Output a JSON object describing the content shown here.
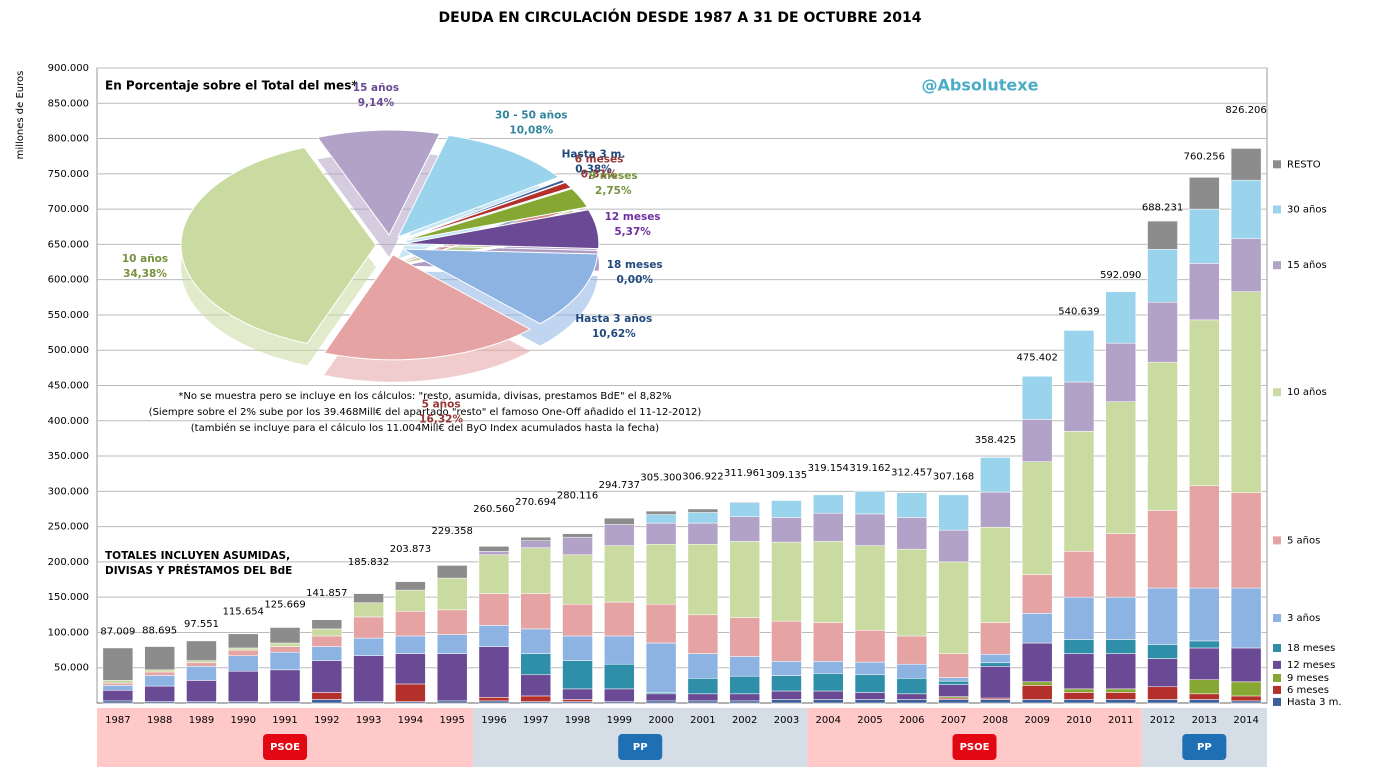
{
  "chart_data": [
    {
      "type": "stacked_bar",
      "title": "DEUDA EN CIRCULACIÓN DESDE 1987 A 31 DE OCTUBRE 2014",
      "y_label": "millones de Euros",
      "watermark": "@Absolutexe",
      "annotations": [
        "TOTALES INCLUYEN ASUMIDAS,",
        "DIVISAS Y PRÉSTAMOS  DEL BdE"
      ],
      "categories": [
        "1987",
        "1988",
        "1989",
        "1990",
        "1991",
        "1992",
        "1993",
        "1994",
        "1995",
        "1996",
        "1997",
        "1998",
        "1999",
        "2000",
        "2001",
        "2002",
        "2003",
        "2004",
        "2005",
        "2006",
        "2007",
        "2008",
        "2009",
        "2010",
        "2011",
        "2012",
        "2013",
        "2014"
      ],
      "ylim": [
        0,
        900000
      ],
      "yticks": [
        {
          "value": 50000,
          "label": "50.000"
        },
        {
          "value": 100000,
          "label": "100.000"
        },
        {
          "value": 150000,
          "label": "150.000"
        },
        {
          "value": 200000,
          "label": "200.000"
        },
        {
          "value": 250000,
          "label": "250.000"
        },
        {
          "value": 300000,
          "label": "300.000"
        },
        {
          "value": 350000,
          "label": "350.000"
        },
        {
          "value": 400000,
          "label": "400.000"
        },
        {
          "value": 450000,
          "label": "450.000"
        },
        {
          "value": 500000,
          "label": "500.000"
        },
        {
          "value": 550000,
          "label": "550.000"
        },
        {
          "value": 600000,
          "label": "600.000"
        },
        {
          "value": 650000,
          "label": "650.000"
        },
        {
          "value": 700000,
          "label": "700.000"
        },
        {
          "value": 750000,
          "label": "750.000"
        },
        {
          "value": 800000,
          "label": "800.000"
        },
        {
          "value": 850000,
          "label": "850.000"
        },
        {
          "value": 900000,
          "label": "900.000"
        }
      ],
      "grid": true,
      "series": [
        {
          "name": "Hasta 3 m.",
          "color": "#3d5f9c",
          "values": [
            3000,
            2000,
            2000,
            2000,
            2000,
            5000,
            2000,
            2000,
            3000,
            3000,
            2000,
            2000,
            2000,
            3000,
            3000,
            3000,
            5000,
            5000,
            5000,
            5000,
            5000,
            5000,
            5000,
            5000,
            5000,
            5000,
            5000,
            3000
          ]
        },
        {
          "name": "6 meses",
          "color": "#b3302b",
          "values": [
            0,
            0,
            0,
            0,
            0,
            10000,
            0,
            25000,
            0,
            5000,
            8000,
            3000,
            0,
            0,
            0,
            0,
            0,
            0,
            0,
            0,
            2000,
            2000,
            20000,
            10000,
            10000,
            18000,
            8000,
            7000
          ]
        },
        {
          "name": "9 meses",
          "color": "#86a833",
          "values": [
            0,
            0,
            0,
            0,
            0,
            0,
            0,
            0,
            0,
            0,
            0,
            0,
            0,
            0,
            0,
            0,
            0,
            0,
            0,
            0,
            2000,
            0,
            5000,
            5000,
            5000,
            0,
            20000,
            20000
          ]
        },
        {
          "name": "12 meses",
          "color": "#6a4a94",
          "values": [
            15000,
            22000,
            30000,
            43000,
            45000,
            45000,
            65000,
            43000,
            67000,
            72000,
            30000,
            15000,
            18000,
            10000,
            10000,
            10000,
            12000,
            12000,
            10000,
            8000,
            17000,
            45000,
            55000,
            50000,
            50000,
            40000,
            45000,
            48000
          ]
        },
        {
          "name": "18 meses",
          "color": "#2f8fa8",
          "values": [
            0,
            0,
            0,
            0,
            0,
            0,
            0,
            0,
            0,
            0,
            30000,
            40000,
            35000,
            2000,
            22000,
            25000,
            22000,
            25000,
            25000,
            22000,
            5000,
            5000,
            0,
            20000,
            20000,
            20000,
            10000,
            0
          ]
        },
        {
          "name": "3 años",
          "color": "#8db3e2",
          "values": [
            7000,
            15000,
            20000,
            22000,
            25000,
            20000,
            25000,
            25000,
            27000,
            30000,
            35000,
            35000,
            40000,
            70000,
            35000,
            28000,
            20000,
            17000,
            18000,
            20000,
            5000,
            12000,
            42000,
            60000,
            60000,
            80000,
            75000,
            85000
          ]
        },
        {
          "name": "5 años",
          "color": "#e6a3a3",
          "values": [
            3000,
            5000,
            5000,
            8000,
            8000,
            15000,
            30000,
            35000,
            35000,
            45000,
            50000,
            45000,
            48000,
            55000,
            55000,
            55000,
            57000,
            55000,
            45000,
            40000,
            34000,
            45000,
            55000,
            65000,
            90000,
            110000,
            145000,
            135000
          ]
        },
        {
          "name": "10 años",
          "color": "#c9dba0",
          "values": [
            4000,
            3000,
            3000,
            3000,
            5000,
            10000,
            20000,
            30000,
            45000,
            55000,
            65000,
            70000,
            80000,
            85000,
            100000,
            108000,
            112000,
            115000,
            120000,
            123000,
            130000,
            135000,
            160000,
            170000,
            187000,
            210000,
            235000,
            285000
          ]
        },
        {
          "name": "15 años",
          "color": "#b3a2c7",
          "values": [
            0,
            0,
            0,
            0,
            0,
            0,
            0,
            0,
            0,
            5000,
            10000,
            25000,
            30000,
            30000,
            30000,
            35000,
            35000,
            40000,
            45000,
            45000,
            45000,
            50000,
            60000,
            70000,
            83000,
            85000,
            80000,
            75000
          ]
        },
        {
          "name": "30 años",
          "color": "#9ad4ec",
          "values": [
            0,
            0,
            0,
            0,
            0,
            0,
            0,
            0,
            0,
            0,
            0,
            0,
            0,
            12000,
            15000,
            20000,
            24000,
            26000,
            32000,
            35000,
            50000,
            49000,
            61000,
            73000,
            73000,
            75000,
            77000,
            83000
          ]
        },
        {
          "name": "RESTO",
          "color": "#8c8c8c",
          "values": [
            46000,
            33000,
            28000,
            20000,
            22000,
            13000,
            13000,
            12000,
            18000,
            7000,
            5000,
            5000,
            9000,
            5000,
            5000,
            1000,
            0,
            0,
            0,
            0,
            0,
            0,
            0,
            0,
            0,
            40000,
            45000,
            45000
          ]
        }
      ],
      "totals": {
        "values": [
          87009,
          88695,
          97551,
          115654,
          125669,
          141857,
          185832,
          203873,
          229358,
          260560,
          270694,
          280116,
          294737,
          305300,
          306922,
          311961,
          309135,
          319154,
          319162,
          312457,
          307168,
          358425,
          475402,
          540639,
          592090,
          688231,
          760256,
          826206
        ],
        "value_labels": [
          "87.009",
          "88.695",
          "97.551",
          "115.654",
          "125.669",
          "141.857",
          "185.832",
          "203.873",
          "229.358",
          "260.560",
          "270.694",
          "280.116",
          "294.737",
          "305.300",
          "306.922",
          "311.961",
          "309.135",
          "319.154",
          "319.162",
          "312.457",
          "307.168",
          "358.425",
          "475.402",
          "540.639",
          "592.090",
          "688.231",
          "760.256",
          "826.206"
        ]
      },
      "government": [
        {
          "party": "PSOE",
          "from": "1987",
          "to": "1995",
          "color": "#ffc9c9"
        },
        {
          "party": "PP",
          "from": "1996",
          "to": "2003",
          "color": "#d5dde6"
        },
        {
          "party": "PSOE",
          "from": "2004",
          "to": "2011",
          "color": "#ffc9c9"
        },
        {
          "party": "PP",
          "from": "2012",
          "to": "2014",
          "color": "#d5dde6"
        }
      ]
    },
    {
      "type": "pie",
      "title": "En Porcentaje sobre el Total del mes*",
      "notes": [
        "*No se muestra pero se incluye en los cálculos: \"resto, asumida, divisas, prestamos BdE\" el 8,82%",
        "(Siempre sobre el 2% sube por los 39.468Mill€ del apartado  \"resto\" el famoso  One-Off añadido el 11-12-2012)",
        "(también se incluye para el cálculo los 11.004Mill€ del ByO Index acumulados hasta la fecha)"
      ],
      "categories": [
        "15 años",
        "30 - 50 años",
        "Hasta 3 m.",
        "6 meses",
        "9 meses",
        "12 meses",
        "18 meses",
        "Hasta 3 años",
        "5 años",
        "10 años"
      ],
      "values": [
        9.14,
        10.08,
        0.38,
        0.81,
        2.75,
        5.37,
        0,
        10.62,
        16.32,
        34.38
      ],
      "value_labels": [
        "9,14%",
        "10,08%",
        "0,38%",
        "0,81%",
        "2,75%",
        "5,37%",
        "0,00%",
        "10,62%",
        "16,32%",
        "34,38%"
      ],
      "colors": [
        "#b3a2c7",
        "#9ad4ec",
        "#3d5f9c",
        "#b3302b",
        "#86a833",
        "#6a4a94",
        "#2f8fa8",
        "#8db3e2",
        "#e6a3a3",
        "#c9dba0"
      ],
      "label_colors": [
        "#6a4a94",
        "#31849b",
        "#1f497d",
        "#953735",
        "#76923c",
        "#7030a0",
        "#1f497d",
        "#1f497d",
        "#953735",
        "#76923c"
      ]
    }
  ]
}
